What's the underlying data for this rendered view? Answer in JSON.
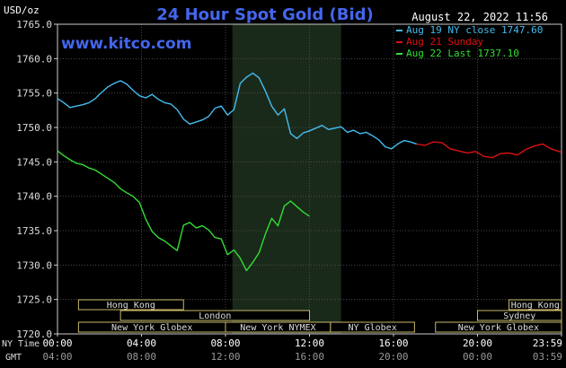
{
  "header": {
    "title": "24 Hour Spot Gold (Bid)",
    "unit": "USD/oz",
    "timestamp": "August 22, 2022 11:56",
    "watermark": "www.kitco.com"
  },
  "legend": [
    {
      "label": "Aug 19 NY close 1747.60",
      "color": "#44bbee"
    },
    {
      "label": "Aug 21 Sunday",
      "color": "#dd1111"
    },
    {
      "label": "Aug 22 Last 1737.10",
      "color": "#33dd33"
    }
  ],
  "axis": {
    "ny_time_label": "NY Time",
    "gmt_label": "GMT",
    "ny_ticks": [
      "00:00",
      "04:00",
      "08:00",
      "12:00",
      "16:00",
      "20:00",
      "23:59"
    ],
    "gmt_ticks": [
      "04:00",
      "08:00",
      "12:00",
      "16:00",
      "20:00",
      "00:00",
      "03:59"
    ],
    "y_ticks": [
      "1765.0",
      "1760.0",
      "1755.0",
      "1750.0",
      "1745.0",
      "1740.0",
      "1735.0",
      "1730.0",
      "1725.0",
      "1720.0"
    ]
  },
  "sessions": [
    {
      "label": "Hong Kong",
      "start": 1.0,
      "end": 6.0,
      "row": 0
    },
    {
      "label": "Hong Kong",
      "start": 21.5,
      "end": 24.0,
      "row": 0
    },
    {
      "label": "London",
      "start": 3.0,
      "end": 12.0,
      "row": 1
    },
    {
      "label": "Sydney",
      "start": 20.0,
      "end": 24.0,
      "row": 1
    },
    {
      "label": "New York Globex",
      "start": 1.0,
      "end": 8.0,
      "row": 2
    },
    {
      "label": "New York NYMEX",
      "start": 8.0,
      "end": 13.0,
      "row": 2
    },
    {
      "label": "NY Globex",
      "start": 13.0,
      "end": 17.0,
      "row": 2
    },
    {
      "label": "New York Globex",
      "start": 18.0,
      "end": 24.0,
      "row": 2
    }
  ],
  "chart_data": {
    "type": "line",
    "title": "24 Hour Spot Gold (Bid)",
    "ylabel": "USD/oz",
    "xlabel": "NY Time",
    "xlim": [
      0,
      24
    ],
    "ylim": [
      1720,
      1765
    ],
    "shaded_region": [
      8.33,
      13.5
    ],
    "grid": true,
    "legend_position": "top-right",
    "series": [
      {
        "name": "Aug 19 NY close 1747.60",
        "color": "#44bbee",
        "x": [
          0,
          0.3,
          0.6,
          0.9,
          1.2,
          1.5,
          1.8,
          2.1,
          2.4,
          2.7,
          3.0,
          3.3,
          3.6,
          3.9,
          4.2,
          4.5,
          4.8,
          5.1,
          5.4,
          5.7,
          6.0,
          6.3,
          6.6,
          6.9,
          7.2,
          7.5,
          7.8,
          8.1,
          8.4,
          8.7,
          9.0,
          9.3,
          9.6,
          9.9,
          10.2,
          10.5,
          10.8,
          11.1,
          11.4,
          11.7,
          12.0,
          12.3,
          12.6,
          12.9,
          13.2,
          13.5,
          13.8,
          14.1,
          14.4,
          14.7,
          15.0,
          15.3,
          15.6,
          15.9,
          16.2,
          16.5,
          16.8,
          17.1
        ],
        "values": [
          1754.2,
          1753.6,
          1752.9,
          1753.1,
          1753.3,
          1753.6,
          1754.2,
          1755.1,
          1755.9,
          1756.4,
          1756.8,
          1756.3,
          1755.4,
          1754.6,
          1754.3,
          1754.8,
          1754.1,
          1753.6,
          1753.4,
          1752.6,
          1751.2,
          1750.5,
          1750.8,
          1751.1,
          1751.6,
          1752.8,
          1753.1,
          1751.8,
          1752.6,
          1756.4,
          1757.3,
          1757.9,
          1757.2,
          1755.3,
          1753.1,
          1751.8,
          1752.7,
          1749.1,
          1748.4,
          1749.2,
          1749.5,
          1749.9,
          1750.3,
          1749.7,
          1749.9,
          1750.1,
          1749.3,
          1749.6,
          1749.1,
          1749.3,
          1748.8,
          1748.2,
          1747.2,
          1746.9,
          1747.6,
          1748.1,
          1747.9,
          1747.6
        ]
      },
      {
        "name": "Aug 21 Sunday",
        "color": "#dd1111",
        "x": [
          17.1,
          17.5,
          17.9,
          18.3,
          18.7,
          19.1,
          19.5,
          19.9,
          20.3,
          20.7,
          21.1,
          21.5,
          21.9,
          22.3,
          22.7,
          23.1,
          23.5,
          23.99
        ],
        "values": [
          1747.6,
          1747.4,
          1747.9,
          1747.8,
          1746.9,
          1746.6,
          1746.3,
          1746.5,
          1745.8,
          1745.6,
          1746.2,
          1746.3,
          1746.0,
          1746.8,
          1747.3,
          1747.6,
          1746.9,
          1746.4
        ]
      },
      {
        "name": "Aug 22 Last 1737.10",
        "color": "#33dd33",
        "x": [
          0,
          0.3,
          0.6,
          0.9,
          1.2,
          1.5,
          1.8,
          2.1,
          2.4,
          2.7,
          3.0,
          3.3,
          3.6,
          3.9,
          4.2,
          4.5,
          4.8,
          5.1,
          5.4,
          5.7,
          6.0,
          6.3,
          6.6,
          6.9,
          7.2,
          7.5,
          7.8,
          8.1,
          8.4,
          8.7,
          9.0,
          9.3,
          9.6,
          9.9,
          10.2,
          10.5,
          10.8,
          11.1,
          11.4,
          11.7,
          12.0
        ],
        "values": [
          1746.6,
          1745.9,
          1745.3,
          1744.8,
          1744.6,
          1744.1,
          1743.8,
          1743.2,
          1742.6,
          1742.0,
          1741.1,
          1740.5,
          1740.0,
          1739.1,
          1736.7,
          1734.9,
          1734.0,
          1733.5,
          1732.8,
          1732.1,
          1735.8,
          1736.2,
          1735.4,
          1735.7,
          1735.1,
          1734.0,
          1733.8,
          1731.5,
          1732.2,
          1731.0,
          1729.2,
          1730.4,
          1731.8,
          1734.5,
          1736.8,
          1735.7,
          1738.6,
          1739.3,
          1738.5,
          1737.7,
          1737.1
        ]
      }
    ]
  }
}
